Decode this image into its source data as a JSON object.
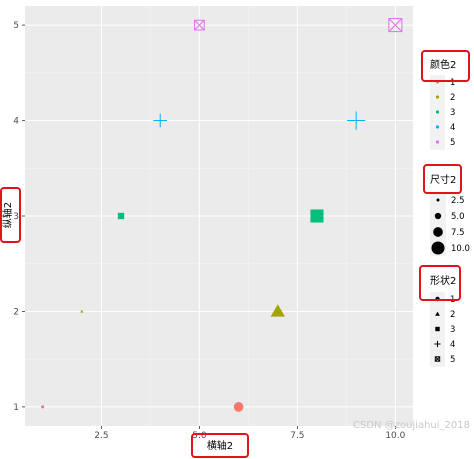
{
  "chart_data": {
    "type": "scatter",
    "xlabel": "横轴2",
    "ylabel": "纵轴2",
    "xlim": [
      0.55,
      10.45
    ],
    "ylim": [
      0.8,
      5.2
    ],
    "xticks": [
      "2.5",
      "5.0",
      "7.5",
      "10.0"
    ],
    "xtick_values": [
      2.5,
      5.0,
      7.5,
      10.0
    ],
    "yticks": [
      "1",
      "2",
      "3",
      "4",
      "5"
    ],
    "ytick_values": [
      1,
      2,
      3,
      4,
      5
    ],
    "grid": true,
    "points": [
      {
        "x": 1,
        "y": 1,
        "color_group": "1",
        "size": 2.5,
        "shape": "circle",
        "color": "#F8766D"
      },
      {
        "x": 2,
        "y": 2,
        "color_group": "2",
        "size": 2.5,
        "shape": "triangle",
        "color": "#A3A500"
      },
      {
        "x": 3,
        "y": 3,
        "color_group": "3",
        "size": 5.0,
        "shape": "square",
        "color": "#00BF7D"
      },
      {
        "x": 4,
        "y": 4,
        "color_group": "4",
        "size": 7.5,
        "shape": "plus",
        "color": "#00B0F6"
      },
      {
        "x": 5,
        "y": 5,
        "color_group": "5",
        "size": 7.5,
        "shape": "boxx",
        "color": "#E76BF3"
      },
      {
        "x": 6,
        "y": 1,
        "color_group": "1",
        "size": 7.5,
        "shape": "circle",
        "color": "#F8766D"
      },
      {
        "x": 7,
        "y": 2,
        "color_group": "2",
        "size": 10.0,
        "shape": "triangle",
        "color": "#A3A500"
      },
      {
        "x": 8,
        "y": 3,
        "color_group": "3",
        "size": 10.0,
        "shape": "square",
        "color": "#00BF7D"
      },
      {
        "x": 9,
        "y": 4,
        "color_group": "4",
        "size": 10.0,
        "shape": "plus",
        "color": "#00B0F6"
      },
      {
        "x": 10,
        "y": 5,
        "color_group": "5",
        "size": 10.0,
        "shape": "boxx",
        "color": "#E76BF3"
      }
    ],
    "legends": {
      "color": {
        "title": "颜色2",
        "items": [
          {
            "label": "1",
            "color": "#F8766D"
          },
          {
            "label": "2",
            "color": "#A3A500"
          },
          {
            "label": "3",
            "color": "#00BF7D"
          },
          {
            "label": "4",
            "color": "#00B0F6"
          },
          {
            "label": "5",
            "color": "#E76BF3"
          }
        ]
      },
      "size": {
        "title": "尺寸2",
        "items": [
          {
            "label": "2.5",
            "size": 2.5
          },
          {
            "label": "5.0",
            "size": 5.0
          },
          {
            "label": "7.5",
            "size": 7.5
          },
          {
            "label": "10.0",
            "size": 10.0
          }
        ]
      },
      "shape": {
        "title": "形状2",
        "items": [
          {
            "label": "1",
            "shape": "circle"
          },
          {
            "label": "2",
            "shape": "triangle"
          },
          {
            "label": "3",
            "shape": "square"
          },
          {
            "label": "4",
            "shape": "plus"
          },
          {
            "label": "5",
            "shape": "boxx"
          }
        ]
      }
    },
    "highlight_color": "#E0141A"
  },
  "watermark": "CSDN @zoujiahui_2018"
}
